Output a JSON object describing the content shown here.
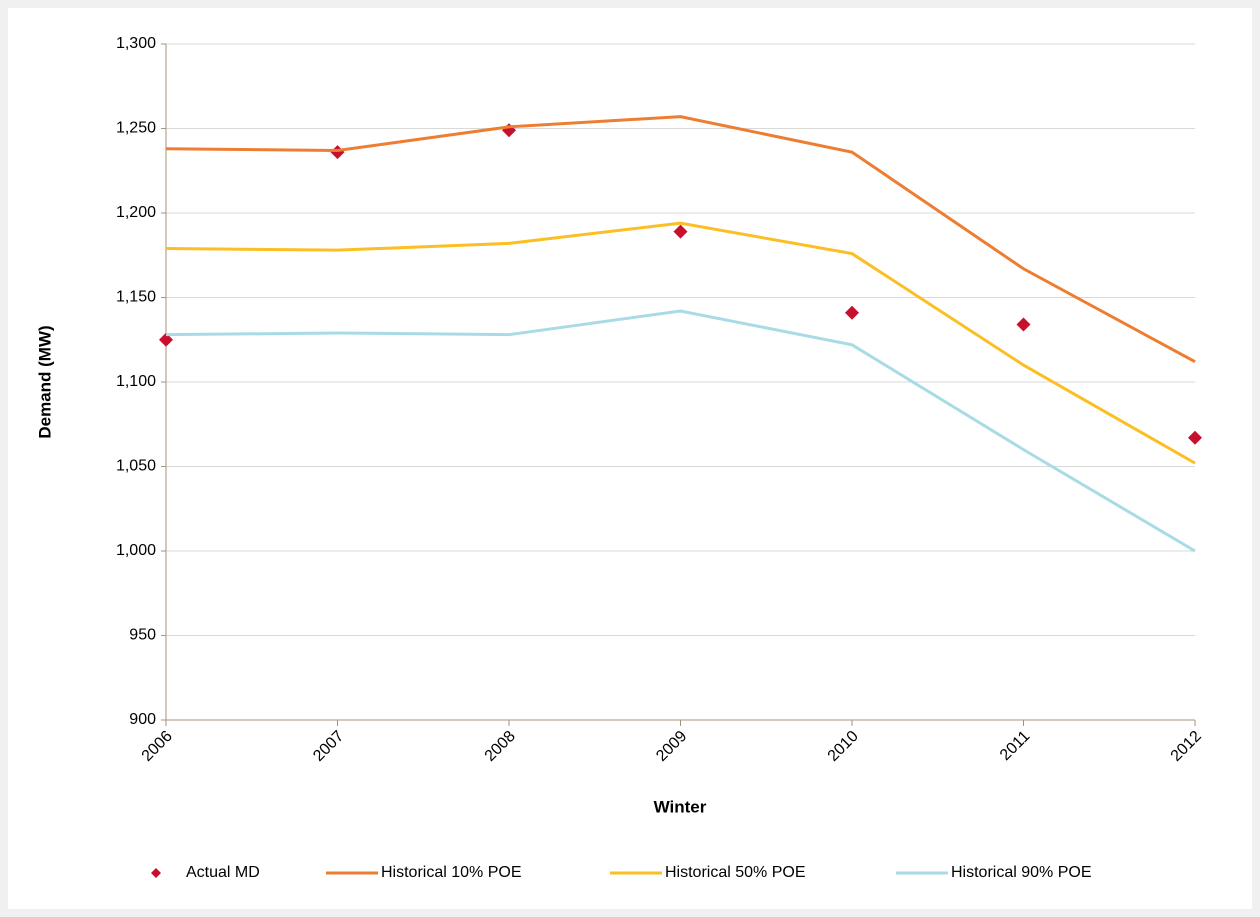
{
  "chart_data": {
    "type": "line",
    "x_label": "Winter",
    "y_label": "Demand (MW)",
    "categories": [
      "2006",
      "2007",
      "2008",
      "2009",
      "2010",
      "2011",
      "2012"
    ],
    "series": [
      {
        "name": "Actual MD",
        "type": "scatter",
        "color": "#c8102e",
        "values": [
          1125,
          1236,
          1249,
          1189,
          1141,
          1134,
          1067
        ]
      },
      {
        "name": "Historical 10% POE",
        "color": "#ed7d31",
        "values": [
          1238,
          1237,
          1251,
          1257,
          1236,
          1167,
          1112
        ]
      },
      {
        "name": "Historical 50% POE",
        "color": "#fbbf24",
        "values": [
          1179,
          1178,
          1182,
          1194,
          1176,
          1110,
          1052
        ]
      },
      {
        "name": "Historical 90% POE",
        "color": "#a8dbe6",
        "values": [
          1128,
          1129,
          1128,
          1142,
          1122,
          1060,
          1000
        ]
      }
    ],
    "ylim": [
      900,
      1300
    ],
    "yticks": [
      900,
      950,
      {
        "value": 1000,
        "label": "1,000"
      },
      {
        "value": 1050,
        "label": "1,050"
      },
      {
        "value": 1100,
        "label": "1,100"
      },
      {
        "value": 1150,
        "label": "1,150"
      },
      {
        "value": 1200,
        "label": "1,200"
      },
      {
        "value": 1250,
        "label": "1,250"
      },
      {
        "value": 1300,
        "label": "1,300"
      }
    ],
    "grid": true,
    "legend": "bottom"
  }
}
